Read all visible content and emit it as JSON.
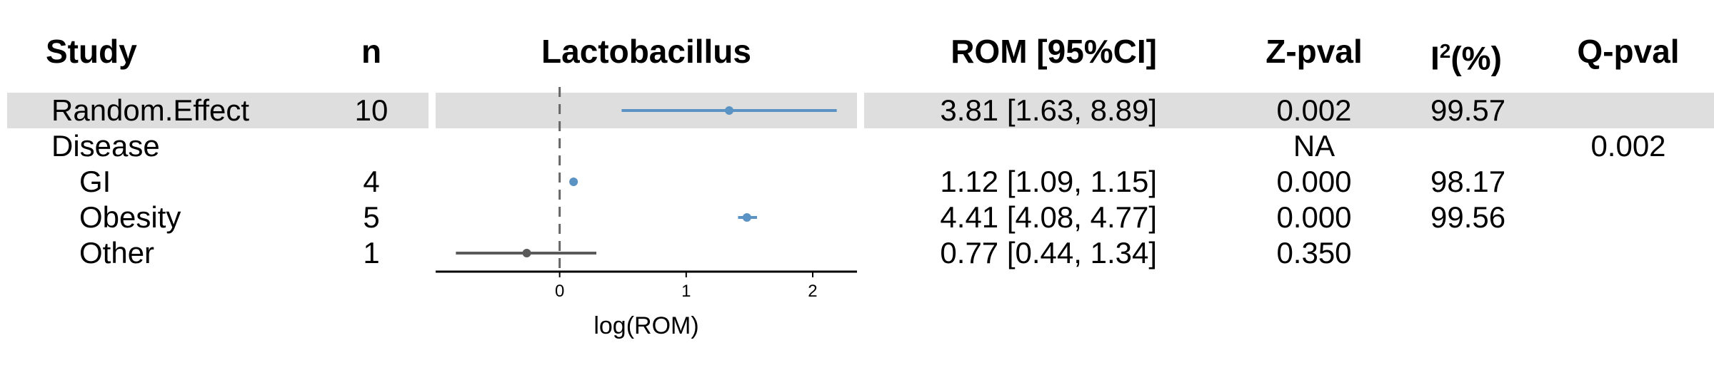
{
  "headers": {
    "study": "Study",
    "n": "n",
    "plot_title": "Lactobacillus",
    "rom": "ROM [95%CI]",
    "zpval": "Z-pval",
    "i2_base": "I",
    "i2_sup": "2",
    "i2_suffix": "(%)",
    "qpval": "Q-pval"
  },
  "rows": [
    {
      "label": "Random.Effect",
      "n": "10",
      "rom": "3.81 [1.63, 8.89]",
      "zpval": "0.002",
      "i2": "99.57",
      "qpval": ""
    },
    {
      "label": "Disease",
      "n": "",
      "rom": "",
      "zpval": "NA",
      "i2": "",
      "qpval": "0.002"
    },
    {
      "label": "GI",
      "n": "4",
      "rom": "1.12 [1.09, 1.15]",
      "zpval": "0.000",
      "i2": "98.17",
      "qpval": ""
    },
    {
      "label": "Obesity",
      "n": "5",
      "rom": "4.41 [4.08, 4.77]",
      "zpval": "0.000",
      "i2": "99.56",
      "qpval": ""
    },
    {
      "label": "Other",
      "n": "1",
      "rom": "0.77 [0.44, 1.34]",
      "zpval": "0.350",
      "i2": "",
      "qpval": ""
    }
  ],
  "colors": {
    "band": "#dedede",
    "significant": "#5b93c5",
    "nonsignificant": "#5a5a5a",
    "refline": "#666666"
  },
  "chart_data": {
    "type": "scatter",
    "title": "Lactobacillus",
    "xlabel": "log(ROM)",
    "ylabel": "",
    "xlim": [
      -0.98,
      2.35
    ],
    "x_ticks": [
      "0",
      "1",
      "2"
    ],
    "x_tick_values": [
      0,
      1,
      2
    ],
    "reference_line": 0,
    "grid": false,
    "points": [
      {
        "study": "Random.Effect",
        "est": 1.34,
        "lo": 0.49,
        "hi": 2.19,
        "significant": true
      },
      {
        "study": "GI",
        "est": 0.11,
        "lo": 0.09,
        "hi": 0.14,
        "significant": true
      },
      {
        "study": "Obesity",
        "est": 1.48,
        "lo": 1.41,
        "hi": 1.56,
        "significant": true
      },
      {
        "study": "Other",
        "est": -0.26,
        "lo": -0.82,
        "hi": 0.29,
        "significant": false
      }
    ]
  }
}
